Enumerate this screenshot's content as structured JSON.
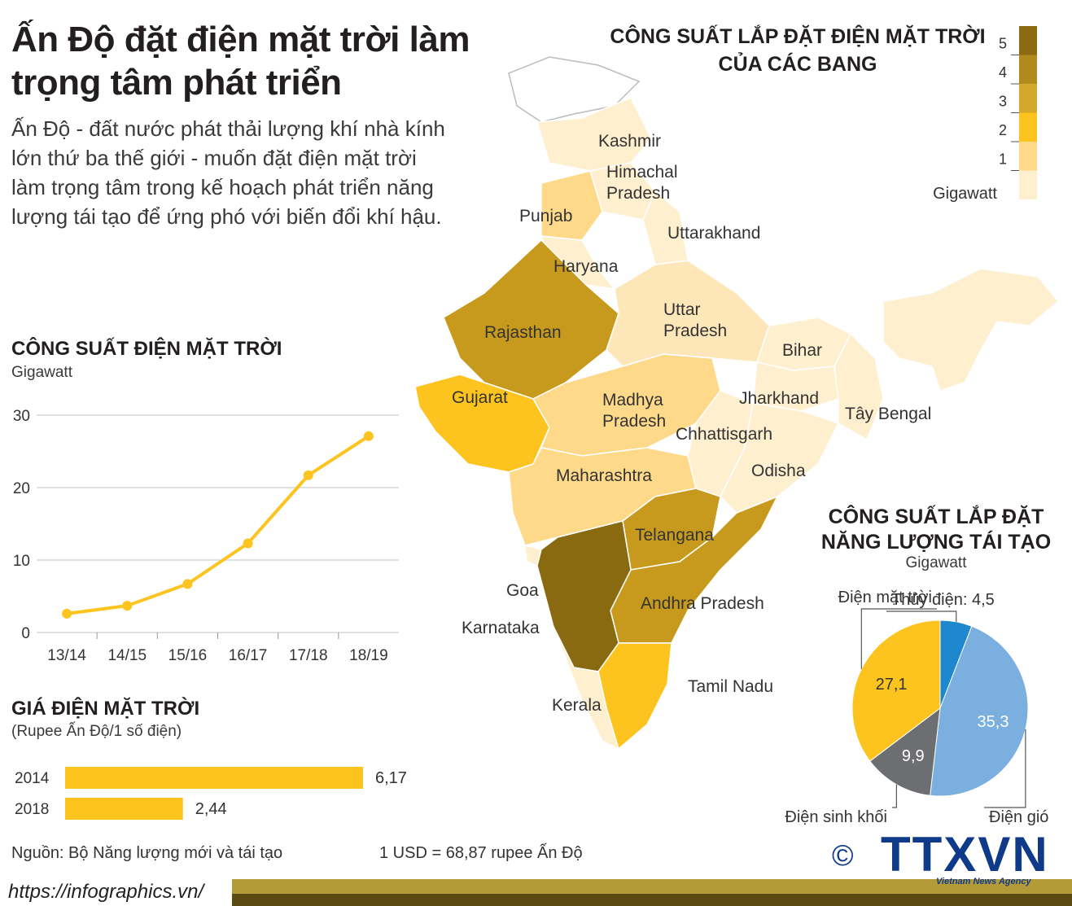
{
  "header": {
    "title": "Ấn Độ đặt điện mặt trời làm trọng tâm phát triển",
    "intro": "Ấn Độ - đất nước phát thải lượng khí nhà kính lớn thứ ba thế giới - muốn đặt điện mặt trời làm trọng tâm trong kế hoạch phát triển năng lượng tái tạo để ứng phó với biến đổi khí hậu."
  },
  "map": {
    "title": "CÔNG SUẤT LẮP ĐẶT ĐIỆN MẶT TRỜI CỦA CÁC BANG",
    "legend_unit": "Gigawatt",
    "legend_ticks": [
      "5",
      "4",
      "3",
      "2",
      "1"
    ],
    "legend_colors": [
      "#8a6a10",
      "#b08a1c",
      "#d4a82a",
      "#fdc420",
      "#fed98a",
      "#feefcf"
    ],
    "states": [
      {
        "name": "Kashmir",
        "color": "#feefcf"
      },
      {
        "name": "Himachal Pradesh",
        "color": "#feefcf"
      },
      {
        "name": "Punjab",
        "color": "#fed98a"
      },
      {
        "name": "Uttarakhand",
        "color": "#feefcf"
      },
      {
        "name": "Haryana",
        "color": "#feefcf"
      },
      {
        "name": "Rajasthan",
        "color": "#c79a1e"
      },
      {
        "name": "Uttar Pradesh",
        "color": "#fde7b8"
      },
      {
        "name": "Bihar",
        "color": "#feefcf"
      },
      {
        "name": "Gujarat",
        "color": "#fdc420"
      },
      {
        "name": "Madhya Pradesh",
        "color": "#fed98a"
      },
      {
        "name": "Jharkhand",
        "color": "#feefcf"
      },
      {
        "name": "Tây Bengal",
        "color": "#feefcf"
      },
      {
        "name": "Chhattisgarh",
        "color": "#feefcf"
      },
      {
        "name": "Odisha",
        "color": "#feefcf"
      },
      {
        "name": "Maharashtra",
        "color": "#fed98a"
      },
      {
        "name": "Telangana",
        "color": "#c79a1e"
      },
      {
        "name": "Goa",
        "color": "#feefcf"
      },
      {
        "name": "Andhra Pradesh",
        "color": "#c79a1e"
      },
      {
        "name": "Karnataka",
        "color": "#8a6a10"
      },
      {
        "name": "Tamil Nadu",
        "color": "#fdc420"
      },
      {
        "name": "Kerala",
        "color": "#feefcf"
      }
    ]
  },
  "chart_data": [
    {
      "type": "line",
      "title": "CÔNG SUẤT ĐIỆN MẶT TRỜI",
      "subtitle": "Gigawatt",
      "categories": [
        "13/14",
        "14/15",
        "15/16",
        "16/17",
        "17/18",
        "18/19"
      ],
      "values": [
        2.6,
        3.7,
        6.7,
        12.3,
        21.7,
        27.1
      ],
      "ylim": [
        0,
        30
      ],
      "yticks": [
        "0",
        "10",
        "20",
        "30"
      ],
      "grid": true,
      "color": "#fdc420"
    },
    {
      "type": "bar",
      "title": "GIÁ ĐIỆN MẶT TRỜI",
      "subtitle": "(Rupee Ấn Độ/1 số điện)",
      "categories": [
        "2014",
        "2018"
      ],
      "values": [
        6.17,
        2.44
      ],
      "value_labels": [
        "6,17",
        "2,44"
      ],
      "color": "#fdc420"
    },
    {
      "type": "pie",
      "title": "CÔNG SUẤT LẮP ĐẶT NĂNG LƯỢNG TÁI TẠO",
      "subtitle": "Gigawatt",
      "slices": [
        {
          "name": "Thủy điện",
          "value": 4.5,
          "value_label": "4,5",
          "color": "#1e88cf"
        },
        {
          "name": "Điện gió",
          "value": 35.3,
          "value_label": "35,3",
          "color": "#7aafe0"
        },
        {
          "name": "Điện sinh khối",
          "value": 9.9,
          "value_label": "9,9",
          "color": "#6d6e71"
        },
        {
          "name": "Điện mặt trời",
          "value": 27.1,
          "value_label": "27,1",
          "color": "#fdc420"
        }
      ]
    }
  ],
  "footer": {
    "source": "Nguồn: Bộ Năng lượng mới và tái tạo",
    "exchange": "1 USD = 68,87 rupee Ấn Độ",
    "url": "https://infographics.vn/",
    "logo": "TTXVN",
    "agency": "Vietnam News Agency",
    "copyright": "©"
  }
}
